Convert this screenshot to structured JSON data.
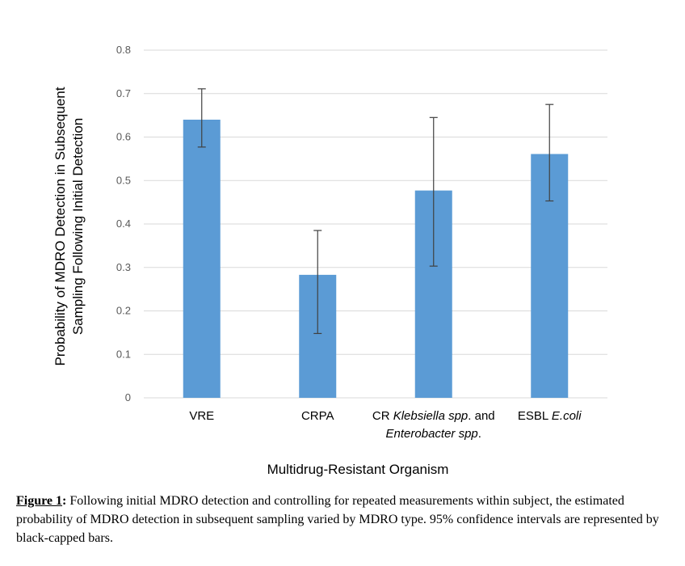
{
  "chart_data": {
    "type": "bar",
    "categories": [
      {
        "parts": [
          {
            "text": "VRE",
            "italic": false
          }
        ]
      },
      {
        "parts": [
          {
            "text": "CRPA",
            "italic": false
          }
        ]
      },
      {
        "lines": [
          [
            {
              "text": "CR ",
              "italic": false
            },
            {
              "text": "Klebsiella spp",
              "italic": true
            },
            {
              "text": ". and",
              "italic": false
            }
          ],
          [
            {
              "text": "Enterobacter spp",
              "italic": true
            },
            {
              "text": ".",
              "italic": false
            }
          ]
        ]
      },
      {
        "parts": [
          {
            "text": "ESBL ",
            "italic": false
          },
          {
            "text": "E.coli",
            "italic": true
          }
        ]
      }
    ],
    "values": [
      0.64,
      0.283,
      0.477,
      0.561
    ],
    "error_lower": [
      0.577,
      0.148,
      0.303,
      0.453
    ],
    "error_upper": [
      0.711,
      0.385,
      0.645,
      0.675
    ],
    "ylim": [
      0,
      0.8
    ],
    "yticks": [
      "0",
      "0.1",
      "0.2",
      "0.3",
      "0.4",
      "0.5",
      "0.6",
      "0.7",
      "0.8"
    ],
    "ylabel_lines": [
      "Probability of MDRO Detection in Subsequent",
      "Sampling Following Initial Detection"
    ],
    "xlabel": "Multidrug-Resistant Organism",
    "grid": true,
    "bar_color": "#5b9bd5",
    "grid_color": "#d9d9d9",
    "error_color": "#404040"
  },
  "caption": {
    "label": "Figure 1",
    "colon": ":",
    "text": " Following initial MDRO detection and controlling for repeated measurements within subject, the estimated probability of MDRO detection in subsequent sampling varied by MDRO type.  95% confidence intervals are represented by black-capped bars."
  }
}
